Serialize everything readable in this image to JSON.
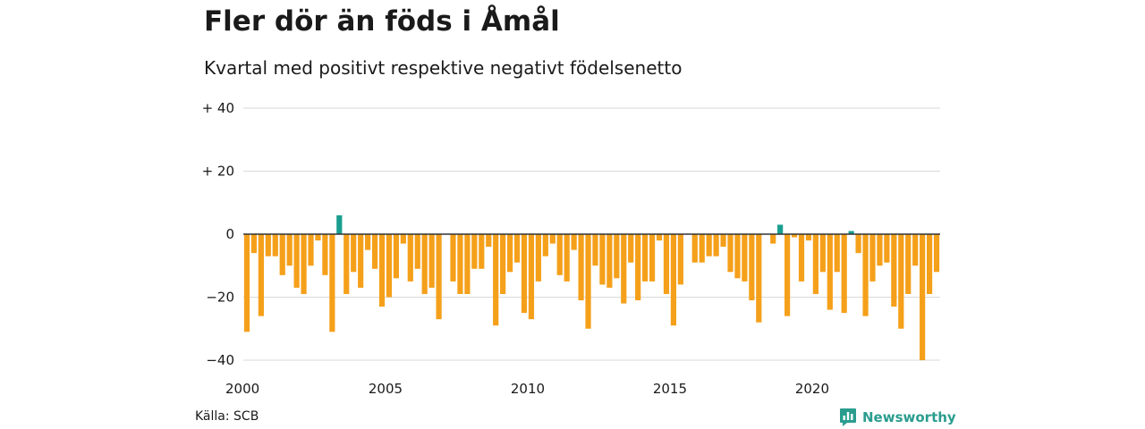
{
  "header": {
    "title": "Fler dör än föds i Åmål",
    "subtitle": "Kvartal med positivt respektive negativt födelsenetto"
  },
  "footer": {
    "source": "Källa: SCB",
    "brand": "Newsworthy",
    "brand_icon": "newsworthy-logo-icon"
  },
  "colors": {
    "positive": "#1a9e8f",
    "negative": "#f5a01a",
    "grid": "#d9d9d9",
    "zero_line": "#333333",
    "brand": "#2a9d8f"
  },
  "chart_data": {
    "type": "bar",
    "title": "Fler dör än föds i Åmål",
    "subtitle": "Kvartal med positivt respektive negativt födelsenetto",
    "xlabel": "",
    "ylabel": "",
    "x_start": "2000 Q1",
    "x_ticks": [
      "2000",
      "2005",
      "2010",
      "2015",
      "2020"
    ],
    "y_ticks": [
      "+ 40",
      "+ 20",
      "0",
      "−20",
      "−40"
    ],
    "ylim": [
      -40,
      40
    ],
    "grid": true,
    "values": [
      -31,
      -6,
      -26,
      -7,
      -7,
      -13,
      -10,
      -17,
      -19,
      -10,
      -2,
      -13,
      -31,
      6,
      -19,
      -12,
      -17,
      -5,
      -11,
      -23,
      -20,
      -14,
      -3,
      -15,
      -11,
      -19,
      -17,
      -27,
      0,
      -15,
      -19,
      -19,
      -11,
      -11,
      -4,
      -29,
      -19,
      -12,
      -9,
      -25,
      -27,
      -15,
      -7,
      -3,
      -13,
      -15,
      -5,
      -21,
      -30,
      -10,
      -16,
      -17,
      -14,
      -22,
      -9,
      -21,
      -15,
      -15,
      -2,
      -19,
      -29,
      -16,
      0,
      -9,
      -9,
      -7,
      -7,
      -4,
      -12,
      -14,
      -15,
      -21,
      -28,
      0,
      -3,
      3,
      -26,
      -1,
      -15,
      -2,
      -19,
      -12,
      -24,
      -12,
      -25,
      1,
      -6,
      -26,
      -15,
      -10,
      -9,
      -23,
      -30,
      -19,
      -10,
      -40,
      -19,
      -12
    ]
  }
}
